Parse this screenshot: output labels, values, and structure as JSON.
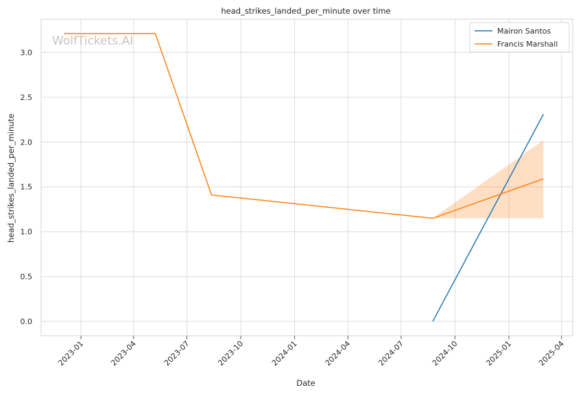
{
  "chart_data": {
    "type": "line",
    "title": "head_strikes_landed_per_minute over time",
    "xlabel": "Date",
    "ylabel": "head_strikes_landed_per_minute",
    "watermark": "WolfTickets.AI",
    "xlim": [
      "2022-10-25",
      "2025-04-20"
    ],
    "ylim": [
      -0.16,
      3.37
    ],
    "x_ticks": [
      "2023-01",
      "2023-04",
      "2023-07",
      "2023-10",
      "2024-01",
      "2024-04",
      "2024-07",
      "2024-10",
      "2025-01",
      "2025-04"
    ],
    "y_ticks": [
      "0.0",
      "0.5",
      "1.0",
      "1.5",
      "2.0",
      "2.5",
      "3.0"
    ],
    "grid": true,
    "legend_position": "top-right",
    "series": [
      {
        "name": "Mairon Santos",
        "color": "#1f77b4",
        "x": [
          "2024-08-24",
          "2025-03-01"
        ],
        "y": [
          0.0,
          2.31
        ]
      },
      {
        "name": "Francis Marshall",
        "color": "#ff7f0e",
        "x": [
          "2022-12-03",
          "2023-05-08",
          "2023-08-12",
          "2024-08-24",
          "2025-03-01"
        ],
        "y": [
          3.21,
          3.21,
          1.41,
          1.15,
          1.59
        ],
        "ci_x": [
          "2024-08-24",
          "2025-03-01"
        ],
        "ci_lower": [
          1.15,
          1.15
        ],
        "ci_upper": [
          1.15,
          2.02
        ]
      }
    ]
  }
}
